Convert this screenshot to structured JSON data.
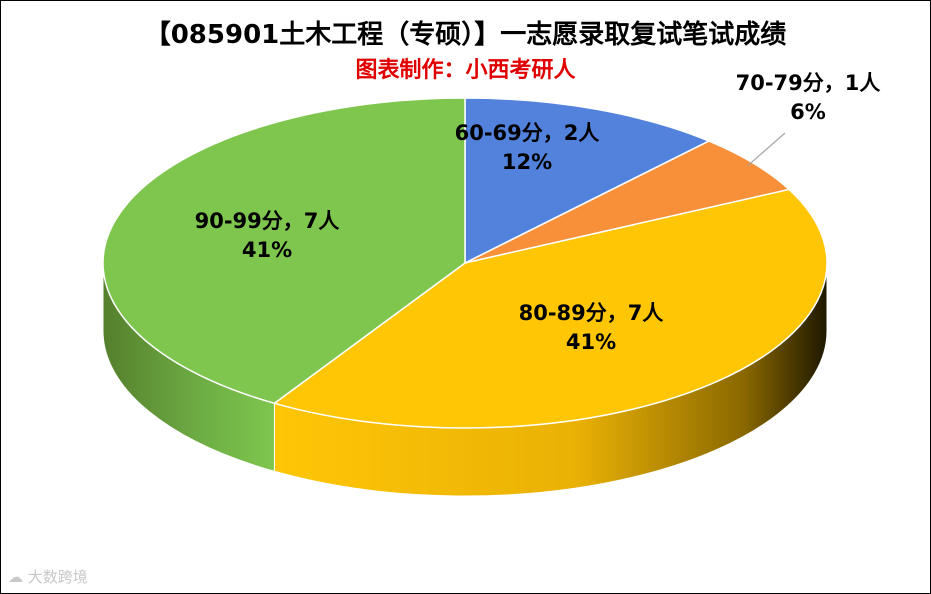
{
  "title": "【085901土木工程（专硕）】一志愿录取复试笔试成绩",
  "subtitle": "图表制作：小西考研人",
  "watermark": "大数跨境",
  "chart_data": {
    "type": "pie",
    "title": "【085901土木工程（专硕）】一志愿录取复试笔试成绩",
    "subtitle": "图表制作：小西考研人",
    "slices": [
      {
        "label": "60-69分",
        "count": "2人",
        "value": 2,
        "percent": "12%",
        "color": "#5282DB"
      },
      {
        "label": "70-79分",
        "count": "1人",
        "value": 1,
        "percent": "6%",
        "color": "#F8903A"
      },
      {
        "label": "80-89分",
        "count": "7人",
        "value": 7,
        "percent": "41%",
        "color": "#FFC606"
      },
      {
        "label": "90-99分",
        "count": "7人",
        "value": 7,
        "percent": "41%",
        "color": "#7EC64E"
      }
    ]
  }
}
